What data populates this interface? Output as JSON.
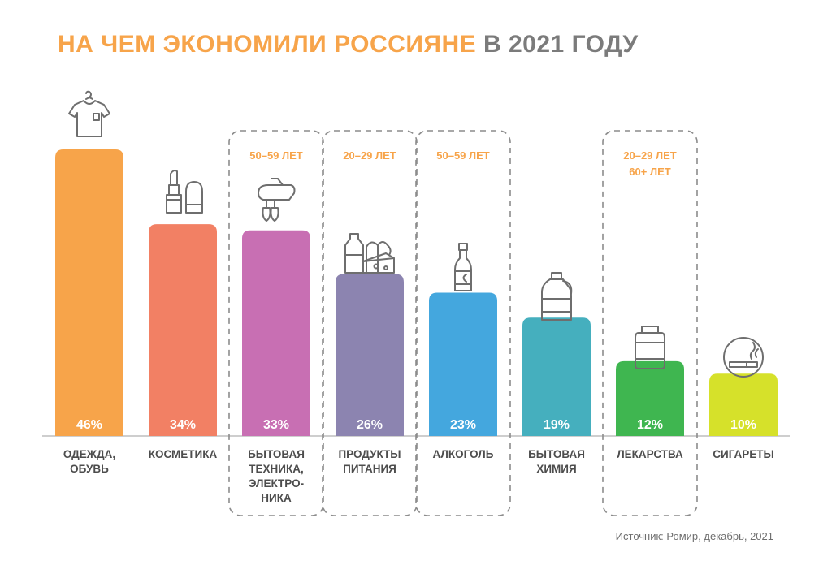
{
  "title": {
    "part1": "НА ЧЕМ ЭКОНОМИЛИ РОССИЯНЕ",
    "part2": "В 2021 ГОДУ"
  },
  "source": "Источник: Ромир, декабрь, 2021",
  "colors": {
    "title_accent": "#F7A44A",
    "title_gray": "#7B7B7B",
    "axis": "#BDBDBD",
    "label": "#4D4D4D",
    "age_label": "#F7A44A",
    "icon": "#6E6E6E",
    "dash_box": "#8C8C8C"
  },
  "chart_data": {
    "type": "bar",
    "title": "НА ЧЕМ ЭКОНОМИЛИ РОССИЯНЕ В 2021 ГОДУ",
    "unit": "%",
    "ylim": [
      0,
      46
    ],
    "grid": false,
    "categories": [
      {
        "label_lines": [
          "ОДЕЖДА,",
          "ОБУВЬ"
        ],
        "value": 46,
        "value_label": "46%",
        "color": "#F7A44A",
        "icon": "tshirt-icon",
        "highlight": null
      },
      {
        "label_lines": [
          "КОСМЕТИКА"
        ],
        "value": 34,
        "value_label": "34%",
        "color": "#F28064",
        "icon": "lipstick-icon",
        "highlight": null
      },
      {
        "label_lines": [
          "БЫТОВАЯ",
          "ТЕХНИКА,",
          "ЭЛЕКТРО-",
          "НИКА"
        ],
        "value": 33,
        "value_label": "33%",
        "color": "#C86FB3",
        "icon": "mixer-icon",
        "highlight": [
          "50–59 ЛЕТ"
        ]
      },
      {
        "label_lines": [
          "ПРОДУКТЫ",
          "ПИТАНИЯ"
        ],
        "value": 26,
        "value_label": "26%",
        "color": "#8C84B0",
        "icon": "groceries-icon",
        "highlight": [
          "20–29 ЛЕТ"
        ]
      },
      {
        "label_lines": [
          "АЛКОГОЛЬ"
        ],
        "value": 23,
        "value_label": "23%",
        "color": "#44A7DE",
        "icon": "bottle-icon",
        "highlight": [
          "50–59 ЛЕТ"
        ]
      },
      {
        "label_lines": [
          "БЫТОВАЯ",
          "ХИМИЯ"
        ],
        "value": 19,
        "value_label": "19%",
        "color": "#45AFBE",
        "icon": "detergent-icon",
        "highlight": null
      },
      {
        "label_lines": [
          "ЛЕКАРСТВА"
        ],
        "value": 12,
        "value_label": "12%",
        "color": "#3FB650",
        "icon": "pill-jar-icon",
        "highlight": [
          "20–29 ЛЕТ",
          "60+ ЛЕТ"
        ]
      },
      {
        "label_lines": [
          "СИГАРЕТЫ"
        ],
        "value": 10,
        "value_label": "10%",
        "color": "#D6E12A",
        "icon": "cigarette-icon",
        "highlight": null
      }
    ]
  }
}
